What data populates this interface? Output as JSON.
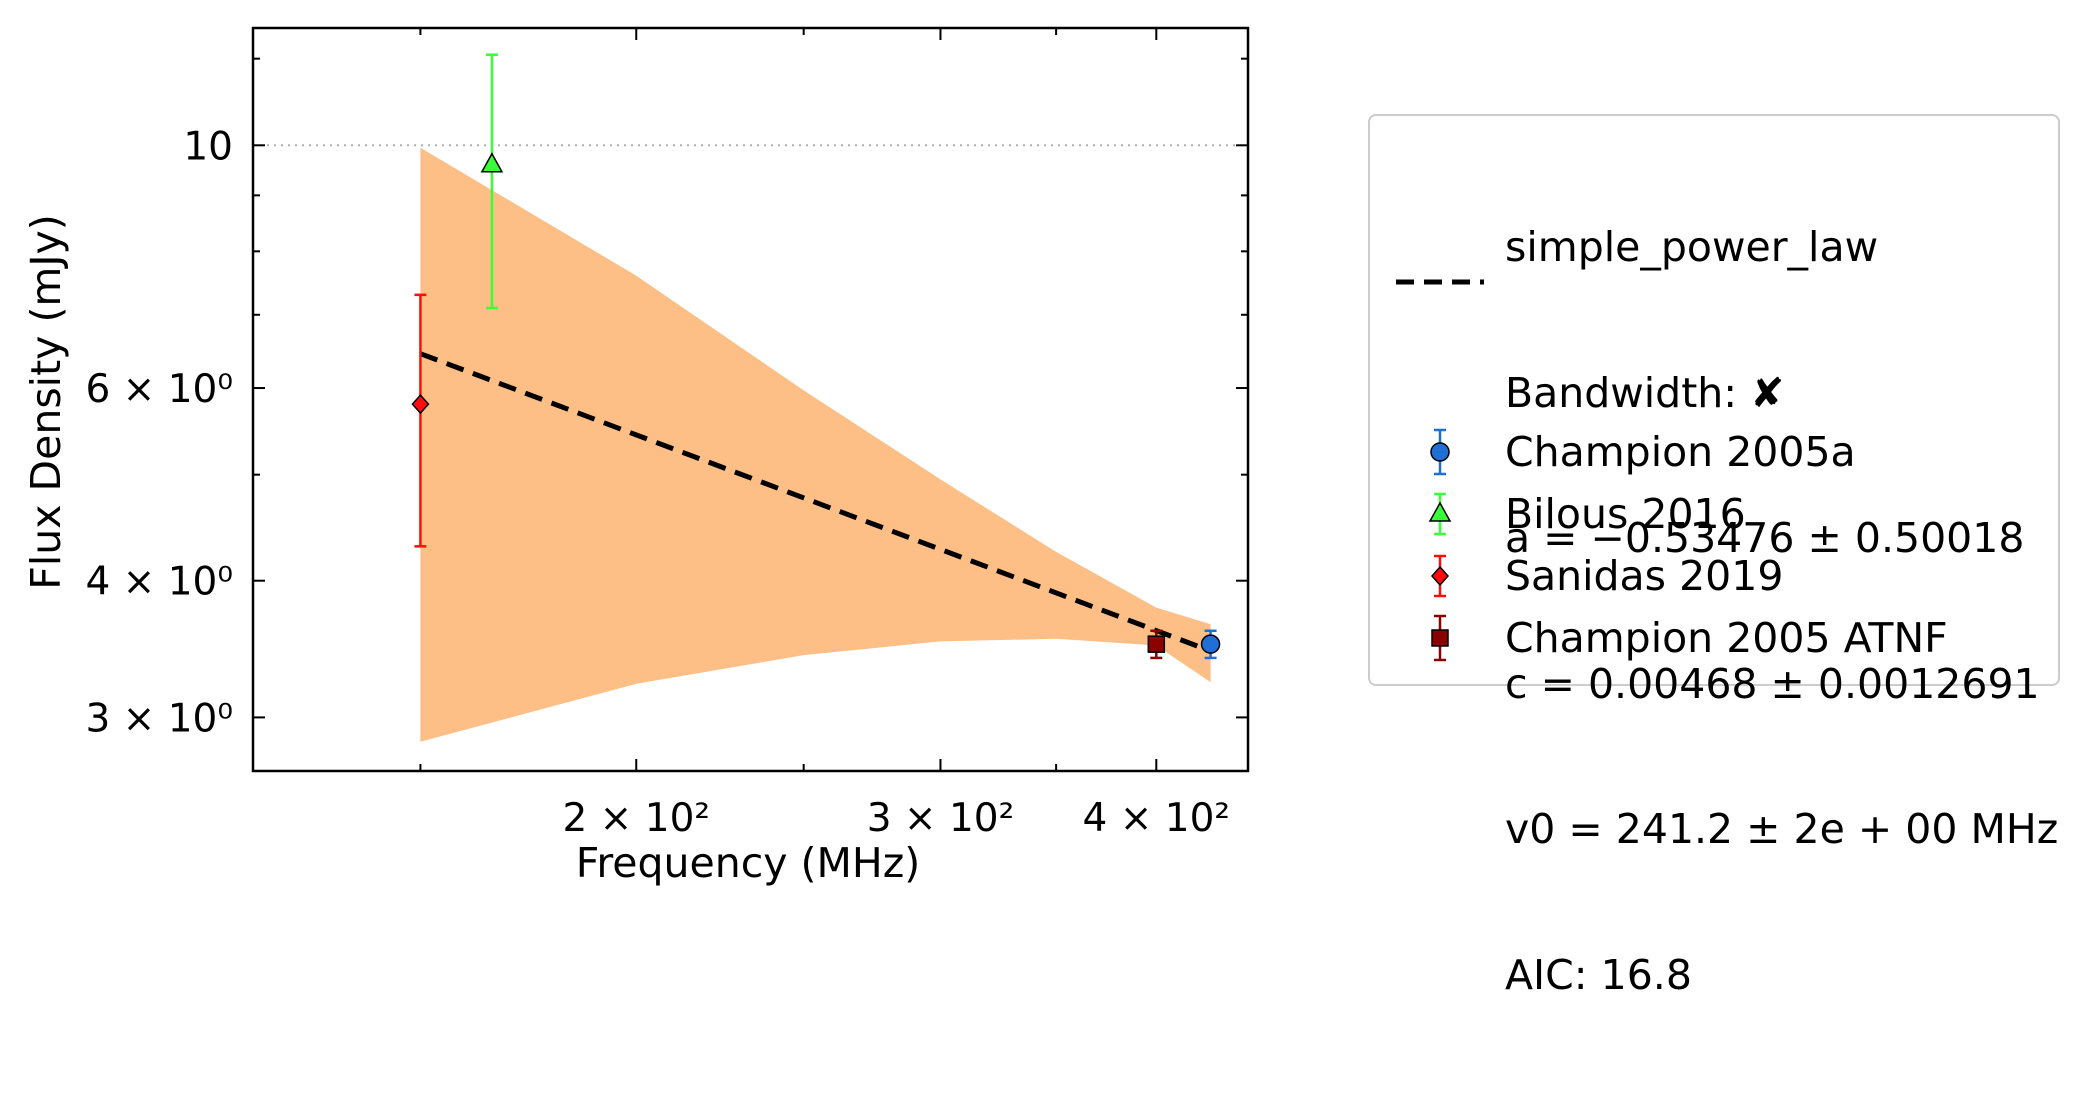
{
  "chart_data": {
    "type": "scatter",
    "xlabel": "Frequency (MHz)",
    "ylabel": "Flux Density (mJy)",
    "xscale": "log",
    "yscale": "log",
    "xlim": [
      120,
      452
    ],
    "ylim": [
      2.68,
      12.8
    ],
    "x_ticks": [
      {
        "value": 200,
        "label": "2 × 10²"
      },
      {
        "value": 300,
        "label": "3 × 10²"
      },
      {
        "value": 400,
        "label": "4 × 10²"
      }
    ],
    "y_ticks": [
      {
        "value": 3,
        "label": "3 × 10⁰"
      },
      {
        "value": 4,
        "label": "4 × 10⁰"
      },
      {
        "value": 6,
        "label": "6 × 10⁰"
      },
      {
        "value": 10,
        "label": "10"
      }
    ],
    "grid": "dotted line at y = 10",
    "fit": {
      "name": "simple_power_law",
      "bandwidth_label": "Bandwidth: ✘",
      "a_label": "a = −0.53476 ± 0.50018",
      "c_label": "c = 0.00468 ± 0.0012691",
      "v0_label": "v0 = 241.2 ± 2e + 00 MHz",
      "aic_label": "AIC: 16.8",
      "line": [
        [
          150,
          6.45
        ],
        [
          430,
          3.45
        ]
      ],
      "band": [
        {
          "x": 150,
          "lo": 2.85,
          "hi": 9.95
        },
        {
          "x": 200,
          "lo": 3.22,
          "hi": 7.6
        },
        {
          "x": 250,
          "lo": 3.42,
          "hi": 5.97
        },
        {
          "x": 300,
          "lo": 3.52,
          "hi": 4.95
        },
        {
          "x": 350,
          "lo": 3.54,
          "hi": 4.25
        },
        {
          "x": 400,
          "lo": 3.49,
          "hi": 3.78
        },
        {
          "x": 430,
          "lo": 3.23,
          "hi": 3.65
        }
      ],
      "line_color": "#000000",
      "band_color": "#fdbf86"
    },
    "series": [
      {
        "name": "Champion 2005a",
        "marker": "circle",
        "color": "#1f6fd6",
        "points": [
          {
            "x": 430,
            "y": 3.5,
            "err": 0.1
          }
        ]
      },
      {
        "name": "Bilous 2016",
        "marker": "triangle",
        "color": "#39ff39",
        "points": [
          {
            "x": 165,
            "y": 9.6,
            "err": 2.5
          }
        ]
      },
      {
        "name": "Sanidas 2019",
        "marker": "diamond",
        "color": "#ff0d0d",
        "points": [
          {
            "x": 150,
            "y": 5.8,
            "err": 1.5
          }
        ]
      },
      {
        "name": "Champion 2005 ATNF",
        "marker": "square",
        "color": "#8b0000",
        "points": [
          {
            "x": 400,
            "y": 3.5,
            "err": 0.1
          }
        ]
      }
    ],
    "legend": "right, outside plot"
  }
}
